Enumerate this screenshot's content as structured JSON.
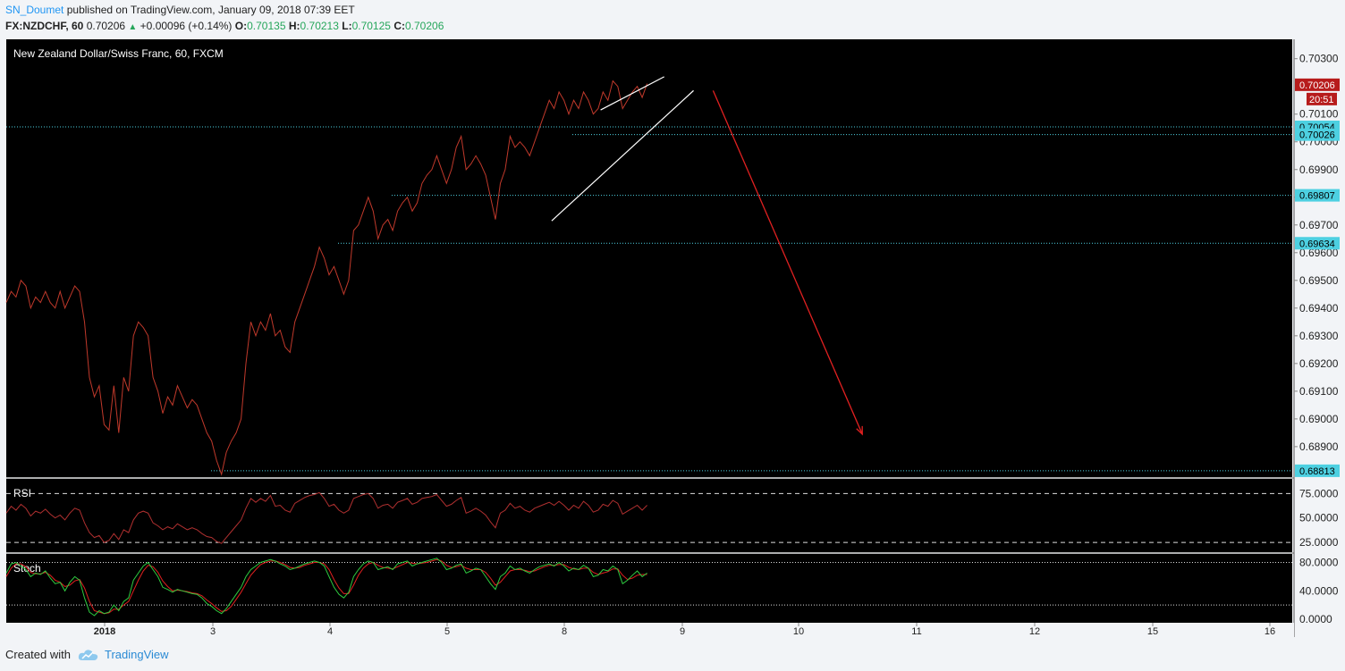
{
  "header": {
    "author": "SN_Doumet",
    "published_text": "published on TradingView.com, January 09, 2018 07:39 EET",
    "symbol": "FX:NZDCHF, 60",
    "last_price": "0.70206",
    "change": "+0.00096 (+0.14%)",
    "open_label": "O:",
    "open": "0.70135",
    "high_label": "H:",
    "high": "0.70213",
    "low_label": "L:",
    "low": "0.70125",
    "close_label": "C:",
    "close": "0.70206"
  },
  "colors": {
    "background": "#000000",
    "price_line": "#c0392b",
    "levels": "#4dd0e1",
    "trendline": "#ffffff",
    "arrow": "#e02020",
    "rsi_line": "#b03030",
    "stoch_k": "#2ecc40",
    "stoch_d": "#e02020",
    "last_price_tag": "#b71c1c"
  },
  "chart_data": {
    "type": "line",
    "title": "New Zealand Dollar/Swiss Franc, 60, FXCM",
    "x_tick_labels": [
      "2018",
      "3",
      "4",
      "5",
      "8",
      "9",
      "10",
      "11",
      "12",
      "15",
      "16"
    ],
    "y_tick_labels": [
      "0.70300",
      "0.70100",
      "0.70000",
      "0.69900",
      "0.69800",
      "0.69700",
      "0.69600",
      "0.69500",
      "0.69400",
      "0.69300",
      "0.69200",
      "0.69100",
      "0.69000",
      "0.68900"
    ],
    "ylim": [
      0.6879,
      0.7037
    ],
    "grid": false,
    "series": [
      {
        "values": [
          0.6942,
          0.6946,
          0.6944,
          0.695,
          0.6948,
          0.694,
          0.6944,
          0.6942,
          0.6946,
          0.6942,
          0.694,
          0.6946,
          0.694,
          0.6944,
          0.6948,
          0.6946,
          0.6935,
          0.6915,
          0.6908,
          0.6912,
          0.6898,
          0.6896,
          0.6912,
          0.6895,
          0.6915,
          0.691,
          0.693,
          0.6935,
          0.6933,
          0.693,
          0.6915,
          0.691,
          0.6902,
          0.6908,
          0.6905,
          0.6912,
          0.6908,
          0.6904,
          0.6907,
          0.6905,
          0.69,
          0.6895,
          0.6892,
          0.6885,
          0.688,
          0.6888,
          0.6892,
          0.6895,
          0.69,
          0.692,
          0.6935,
          0.693,
          0.6935,
          0.6932,
          0.6938,
          0.693,
          0.6932,
          0.6926,
          0.6924,
          0.6935,
          0.694,
          0.6945,
          0.695,
          0.6955,
          0.6962,
          0.6958,
          0.6952,
          0.6955,
          0.695,
          0.6945,
          0.695,
          0.6968,
          0.697,
          0.6975,
          0.698,
          0.6975,
          0.6965,
          0.697,
          0.6972,
          0.6968,
          0.6975,
          0.6978,
          0.698,
          0.6975,
          0.6978,
          0.6985,
          0.6988,
          0.699,
          0.6995,
          0.699,
          0.6985,
          0.699,
          0.6998,
          0.7002,
          0.699,
          0.6992,
          0.6995,
          0.6992,
          0.6988,
          0.698,
          0.6972,
          0.6985,
          0.699,
          0.7002,
          0.6998,
          0.7,
          0.6998,
          0.6995,
          0.7,
          0.7005,
          0.701,
          0.7015,
          0.7012,
          0.7018,
          0.7015,
          0.701,
          0.7015,
          0.7012,
          0.7018,
          0.7015,
          0.701,
          0.7012,
          0.7018,
          0.7015,
          0.7022,
          0.702,
          0.7012,
          0.7015,
          0.7018,
          0.702,
          0.7016,
          0.7021
        ]
      }
    ],
    "horizontal_levels": [
      {
        "label": "0.70054",
        "value": 0.70054
      },
      {
        "label": "0.70026",
        "value": 0.70026
      },
      {
        "label": "0.69807",
        "value": 0.69807
      },
      {
        "label": "0.69634",
        "value": 0.69634
      },
      {
        "label": "0.68813",
        "value": 0.68813
      }
    ],
    "last_price_tag": {
      "label": "0.70206",
      "value": 0.70206
    },
    "countdown_label": "20:51",
    "rsi": {
      "title": "RSI",
      "ylim": [
        0,
        100
      ],
      "y_tick_labels": [
        "75.0000",
        "50.0000",
        "25.0000"
      ],
      "overbought": 75,
      "oversold": 25,
      "values": [
        55,
        62,
        58,
        64,
        60,
        52,
        57,
        55,
        59,
        54,
        50,
        53,
        48,
        55,
        60,
        58,
        45,
        35,
        30,
        32,
        25,
        27,
        34,
        28,
        38,
        35,
        48,
        55,
        57,
        55,
        45,
        42,
        38,
        41,
        39,
        44,
        41,
        38,
        40,
        38,
        34,
        31,
        30,
        26,
        24,
        30,
        36,
        42,
        48,
        60,
        70,
        66,
        70,
        67,
        73,
        62,
        63,
        58,
        56,
        65,
        68,
        71,
        73,
        74,
        76,
        70,
        62,
        64,
        58,
        55,
        58,
        70,
        72,
        74,
        75,
        70,
        60,
        63,
        64,
        60,
        66,
        68,
        70,
        64,
        66,
        70,
        71,
        72,
        74,
        68,
        62,
        64,
        68,
        71,
        55,
        57,
        60,
        57,
        53,
        46,
        40,
        55,
        58,
        65,
        60,
        62,
        58,
        56,
        60,
        62,
        64,
        66,
        63,
        67,
        63,
        58,
        63,
        60,
        67,
        63,
        56,
        58,
        64,
        62,
        68,
        65,
        54,
        57,
        60,
        63,
        58,
        63
      ]
    },
    "stoch": {
      "title": "Stoch",
      "ylim": [
        0,
        100
      ],
      "y_tick_labels": [
        "80.0000",
        "40.0000",
        "0.0000"
      ],
      "upper": 80,
      "lower": 20,
      "k": [
        65,
        78,
        80,
        75,
        70,
        60,
        65,
        63,
        68,
        58,
        50,
        52,
        40,
        52,
        60,
        55,
        30,
        10,
        5,
        12,
        8,
        10,
        20,
        12,
        25,
        30,
        55,
        65,
        75,
        80,
        70,
        60,
        45,
        42,
        38,
        42,
        40,
        38,
        36,
        35,
        30,
        22,
        18,
        12,
        8,
        15,
        25,
        35,
        45,
        60,
        70,
        75,
        80,
        82,
        84,
        82,
        78,
        75,
        70,
        72,
        75,
        78,
        80,
        82,
        80,
        75,
        60,
        45,
        35,
        30,
        38,
        60,
        70,
        78,
        82,
        80,
        70,
        72,
        74,
        70,
        78,
        80,
        82,
        75,
        78,
        80,
        82,
        84,
        86,
        80,
        70,
        72,
        76,
        78,
        65,
        68,
        72,
        70,
        60,
        50,
        42,
        60,
        65,
        75,
        70,
        72,
        68,
        65,
        70,
        74,
        76,
        78,
        75,
        80,
        75,
        68,
        72,
        70,
        76,
        72,
        60,
        62,
        70,
        68,
        75,
        70,
        50,
        55,
        62,
        68,
        60,
        65
      ],
      "d": [
        60,
        72,
        78,
        78,
        74,
        66,
        64,
        64,
        66,
        62,
        55,
        52,
        46,
        48,
        54,
        56,
        44,
        25,
        12,
        10,
        8,
        9,
        14,
        14,
        20,
        25,
        40,
        55,
        68,
        76,
        74,
        66,
        54,
        46,
        40,
        41,
        40,
        39,
        37,
        36,
        33,
        27,
        22,
        16,
        11,
        12,
        18,
        28,
        38,
        50,
        62,
        70,
        77,
        80,
        82,
        82,
        80,
        77,
        73,
        72,
        73,
        76,
        78,
        80,
        80,
        78,
        70,
        56,
        44,
        36,
        36,
        48,
        62,
        72,
        78,
        80,
        76,
        73,
        72,
        71,
        74,
        77,
        80,
        79,
        78,
        79,
        80,
        82,
        84,
        82,
        76,
        73,
        74,
        76,
        72,
        70,
        70,
        70,
        66,
        58,
        48,
        52,
        60,
        68,
        70,
        70,
        69,
        67,
        68,
        71,
        74,
        76,
        76,
        77,
        77,
        73,
        71,
        70,
        72,
        72,
        66,
        63,
        65,
        67,
        71,
        71,
        62,
        56,
        58,
        62,
        63,
        63
      ]
    },
    "annotations": [
      {
        "type": "trendline",
        "role": "upper",
        "from": {
          "x": 121.5,
          "value": 0.70115
        },
        "to": {
          "x": 134.5,
          "value": 0.70235
        }
      },
      {
        "type": "trendline",
        "role": "lower",
        "from": {
          "x": 111.5,
          "value": 0.69715
        },
        "to": {
          "x": 140.5,
          "value": 0.70185
        }
      },
      {
        "type": "arrow",
        "from": {
          "x": 144.5,
          "value": 0.70185
        },
        "to": {
          "x": 175,
          "value": 0.68945
        }
      }
    ]
  },
  "footer": {
    "created_with": "Created with",
    "brand": "TradingView"
  }
}
